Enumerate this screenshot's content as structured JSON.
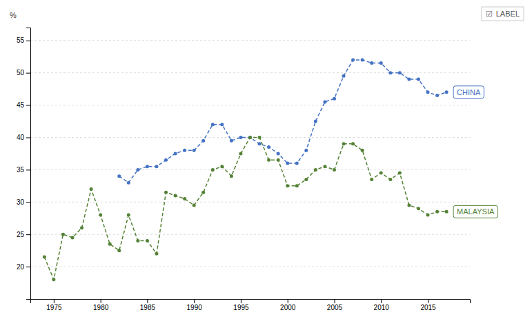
{
  "chart_data": {
    "type": "line",
    "y_label": "%",
    "series": [
      {
        "name": "CHINA",
        "color": "#4472C4",
        "x": [
          1982,
          1983,
          1984,
          1985,
          1986,
          1987,
          1988,
          1989,
          1990,
          1991,
          1992,
          1993,
          1994,
          1995,
          1996,
          1997,
          1998,
          1999,
          2000,
          2001,
          2002,
          2003,
          2004,
          2005,
          2006,
          2007,
          2008,
          2009,
          2010,
          2011,
          2012,
          2013,
          2014,
          2015,
          2016,
          2017
        ],
        "values": [
          34.0,
          33.0,
          35.0,
          35.5,
          35.5,
          36.5,
          37.5,
          38.0,
          38.0,
          39.5,
          42.0,
          42.0,
          39.5,
          40.0,
          40.0,
          39.0,
          38.5,
          37.5,
          36.0,
          36.0,
          38.0,
          42.5,
          45.5,
          46.0,
          49.5,
          52.0,
          52.0,
          51.5,
          51.5,
          50.0,
          50.0,
          49.0,
          49.0,
          47.0,
          46.5,
          47.0
        ]
      },
      {
        "name": "MALAYSIA",
        "color": "#548235",
        "x": [
          1974,
          1975,
          1976,
          1977,
          1978,
          1979,
          1980,
          1981,
          1982,
          1983,
          1984,
          1985,
          1986,
          1987,
          1988,
          1989,
          1990,
          1991,
          1992,
          1993,
          1994,
          1995,
          1996,
          1997,
          1998,
          1999,
          2000,
          2001,
          2002,
          2003,
          2004,
          2005,
          2006,
          2007,
          2008,
          2009,
          2010,
          2011,
          2012,
          2013,
          2014,
          2015,
          2016,
          2017
        ],
        "values": [
          21.5,
          18.0,
          25.0,
          24.5,
          26.0,
          32.0,
          28.0,
          23.5,
          22.5,
          28.0,
          24.0,
          24.0,
          22.0,
          31.5,
          31.0,
          30.5,
          29.5,
          31.5,
          35.0,
          35.5,
          34.0,
          37.5,
          40.0,
          40.0,
          36.5,
          36.5,
          32.5,
          32.5,
          33.5,
          35.0,
          35.5,
          35.0,
          39.0,
          39.0,
          38.0,
          33.5,
          34.5,
          33.5,
          34.5,
          29.5,
          29.0,
          28.0,
          28.5,
          28.5
        ]
      }
    ],
    "marker": "dot",
    "line_style": "dashed",
    "xlim": [
      1972.5,
      2019.5
    ],
    "xticks": [
      1975,
      1980,
      1985,
      1990,
      1995,
      2000,
      2005,
      2010,
      2015
    ],
    "ylim": [
      15,
      57
    ],
    "yticks": [
      20,
      25,
      30,
      35,
      40,
      45,
      50,
      55
    ],
    "grid": true,
    "annotations": [
      "☑",
      "LABEL"
    ]
  }
}
